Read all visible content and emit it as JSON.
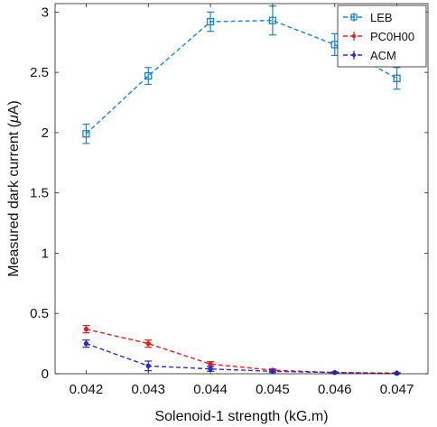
{
  "chart_data": {
    "type": "line",
    "xlabel": "Solenoid-1 strength (kG.m)",
    "ylabel_prefix": "Measured dark current (",
    "ylabel_mu": "μ",
    "ylabel_suffix": "A)",
    "x": [
      0.042,
      0.043,
      0.044,
      0.045,
      0.046,
      0.047
    ],
    "x_tick_labels": [
      "0.042",
      "0.043",
      "0.044",
      "0.045",
      "0.046",
      "0.047"
    ],
    "xlim": [
      0.0415,
      0.0475
    ],
    "ylim": [
      0,
      3.07
    ],
    "y_ticks": [
      0,
      0.5,
      1,
      1.5,
      2,
      2.5,
      3
    ],
    "y_tick_labels": [
      "0",
      "0.5",
      "1",
      "1.5",
      "2",
      "2.5",
      "3"
    ],
    "grid": false,
    "legend_position": "top-right",
    "series": [
      {
        "name": "LEB",
        "color": "#1a85c4",
        "marker": "square",
        "values": [
          1.99,
          2.47,
          2.92,
          2.93,
          2.73,
          2.45
        ],
        "errors": [
          0.08,
          0.07,
          0.08,
          0.12,
          0.09,
          0.09
        ]
      },
      {
        "name": "PC0H00",
        "color": "#e0201f",
        "marker": "dot",
        "values": [
          0.37,
          0.25,
          0.08,
          0.03,
          0.01,
          0.005
        ],
        "errors": [
          0.03,
          0.03,
          0.02,
          0.01,
          0.005,
          0.005
        ]
      },
      {
        "name": "ACM",
        "color": "#2a2ad0",
        "marker": "dot",
        "values": [
          0.25,
          0.065,
          0.04,
          0.02,
          0.01,
          0.002
        ],
        "errors": [
          0.03,
          0.04,
          0.02,
          0.01,
          0.005,
          0.003
        ]
      }
    ]
  }
}
